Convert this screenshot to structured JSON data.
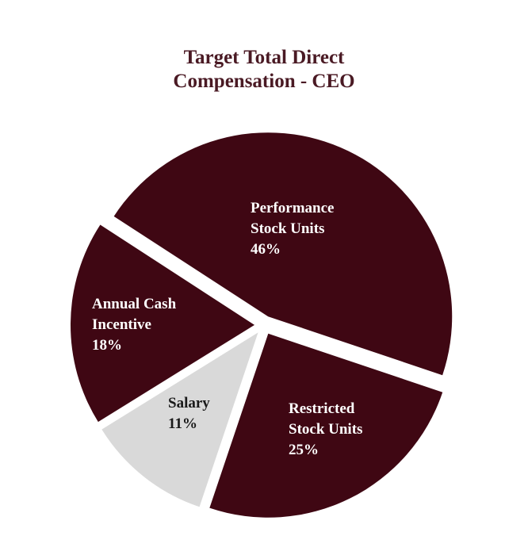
{
  "chart_data": {
    "type": "pie",
    "title": [
      "Target Total Direct",
      "Compensation - CEO"
    ],
    "slices": [
      {
        "label": [
          "Performance",
          "Stock Units",
          "46%"
        ],
        "value": 46,
        "color": "#3f0713",
        "text_color": "#ffffff"
      },
      {
        "label": [
          "Restricted",
          "Stock Units",
          "25%"
        ],
        "value": 25,
        "color": "#3f0713",
        "text_color": "#ffffff"
      },
      {
        "label": [
          "Salary",
          "11%"
        ],
        "value": 11,
        "color": "#d9d9d9",
        "text_color": "#1a1a1a"
      },
      {
        "label": [
          "Annual Cash",
          "Incentive",
          "18%"
        ],
        "value": 18,
        "color": "#3f0713",
        "text_color": "#ffffff"
      }
    ]
  }
}
